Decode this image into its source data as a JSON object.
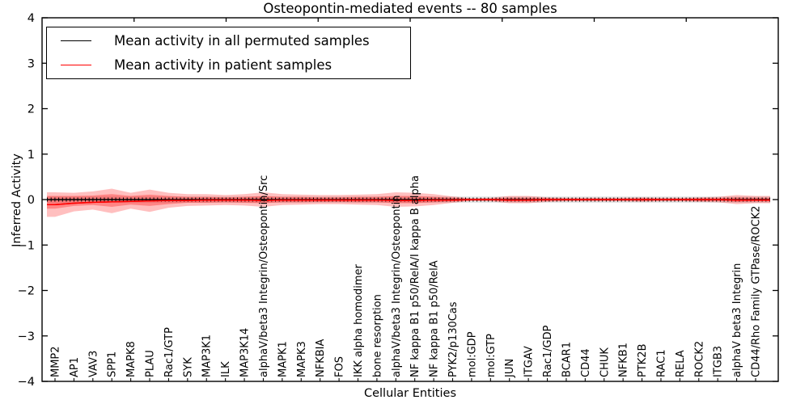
{
  "figure": {
    "title": "Osteopontin-mediated events -- 80 samples",
    "xlabel": "Cellular Entities",
    "ylabel": "Inferred Activity"
  },
  "legend": {
    "items": [
      {
        "label": "Mean activity in all permuted samples",
        "color": "#000000"
      },
      {
        "label": "Mean activity in patient samples",
        "color": "#ff0000"
      }
    ]
  },
  "chart_data": {
    "type": "line",
    "title": "Osteopontin-mediated events -- 80 samples",
    "xlabel": "Cellular Entities",
    "ylabel": "Inferred Activity",
    "ylim": [
      -4,
      4
    ],
    "yticks": [
      -4,
      -3,
      -2,
      -1,
      0,
      1,
      2,
      3,
      4
    ],
    "yticklabels": [
      "−4",
      "−3",
      "−2",
      "−1",
      "0",
      "1",
      "2",
      "3",
      "4"
    ],
    "grid": false,
    "legend_position": "upper left",
    "categories": [
      "MMP2",
      "AP1",
      "VAV3",
      "SPP1",
      "MAPK8",
      "PLAU",
      "Rac1/GTP",
      "SYK",
      "MAP3K1",
      "ILK",
      "MAP3K14",
      "alphaV/beta3 Integrin/Osteopontin/Src",
      "MAPK1",
      "MAPK3",
      "NFKBIA",
      "FOS",
      "IKK alpha homodimer",
      "bone resorption",
      "alphaV/beta3 Integrin/Osteopontin",
      "NF kappa B1 p50/RelA/I kappa B alpha",
      "NF kappa B1 p50/RelA",
      "PYK2/p130Cas",
      "mol:GDP",
      "mol:GTP",
      "JUN",
      "ITGAV",
      "Rac1/GDP",
      "BCAR1",
      "CD44",
      "CHUK",
      "NFKB1",
      "PTK2B",
      "RAC1",
      "RELA",
      "ROCK2",
      "ITGB3",
      "alphaV beta3 Integrin",
      "CD44/Rho Family GTPase/ROCK2"
    ],
    "series": [
      {
        "name": "Mean activity in all permuted samples",
        "color": "#000000",
        "marker": "tick",
        "values": [
          0,
          0,
          0,
          0,
          0,
          0,
          0,
          0,
          0,
          0,
          0,
          0,
          0,
          0,
          0,
          0,
          0,
          0,
          0,
          0,
          0,
          0,
          0,
          0,
          0,
          0,
          0,
          0,
          0,
          0,
          0,
          0,
          0,
          0,
          0,
          0,
          0,
          0
        ]
      },
      {
        "name": "Mean activity in patient samples",
        "color": "#ff0000",
        "marker": "none",
        "values": [
          -0.11,
          -0.08,
          -0.06,
          -0.05,
          -0.04,
          -0.03,
          -0.02,
          -0.02,
          -0.01,
          -0.01,
          -0.01,
          -0.02,
          -0.01,
          -0.01,
          -0.01,
          -0.01,
          -0.01,
          -0.01,
          -0.02,
          -0.02,
          -0.01,
          -0.01,
          0,
          0,
          -0.01,
          -0.01,
          0,
          0,
          0,
          0,
          0,
          0,
          0,
          0,
          0,
          0,
          -0.01,
          -0.01
        ]
      }
    ],
    "bands": [
      {
        "name": "permuted-samples-range",
        "color": "#000000",
        "opacity": 0.1,
        "upper": [
          0.07,
          0.07,
          0.07,
          0.07,
          0.07,
          0.07,
          0.07,
          0.07,
          0.07,
          0.07,
          0.07,
          0.07,
          0.07,
          0.07,
          0.07,
          0.07,
          0.07,
          0.07,
          0.07,
          0.07,
          0.07,
          0.07,
          0.07,
          0.07,
          0.07,
          0.07,
          0.07,
          0.07,
          0.07,
          0.07,
          0.07,
          0.07,
          0.07,
          0.07,
          0.07,
          0.07,
          0.07,
          0.07
        ],
        "lower": [
          -0.07,
          -0.07,
          -0.07,
          -0.07,
          -0.07,
          -0.07,
          -0.07,
          -0.07,
          -0.07,
          -0.07,
          -0.07,
          -0.07,
          -0.07,
          -0.07,
          -0.07,
          -0.07,
          -0.07,
          -0.07,
          -0.07,
          -0.07,
          -0.07,
          -0.07,
          -0.07,
          -0.07,
          -0.07,
          -0.07,
          -0.07,
          -0.07,
          -0.07,
          -0.07,
          -0.07,
          -0.07,
          -0.07,
          -0.07,
          -0.07,
          -0.07,
          -0.07,
          -0.07
        ]
      },
      {
        "name": "patient-samples-outer-range",
        "color": "#ff0000",
        "opacity": 0.25,
        "upper": [
          0.16,
          0.15,
          0.18,
          0.24,
          0.15,
          0.22,
          0.15,
          0.12,
          0.12,
          0.1,
          0.12,
          0.16,
          0.12,
          0.11,
          0.1,
          0.1,
          0.11,
          0.12,
          0.16,
          0.15,
          0.12,
          0.07,
          0.03,
          0.04,
          0.08,
          0.08,
          0.05,
          0.04,
          0.04,
          0.04,
          0.04,
          0.05,
          0.04,
          0.04,
          0.05,
          0.06,
          0.1,
          0.08
        ],
        "lower": [
          -0.38,
          -0.26,
          -0.22,
          -0.3,
          -0.2,
          -0.27,
          -0.18,
          -0.14,
          -0.13,
          -0.12,
          -0.13,
          -0.16,
          -0.12,
          -0.11,
          -0.1,
          -0.1,
          -0.11,
          -0.12,
          -0.16,
          -0.15,
          -0.12,
          -0.07,
          -0.03,
          -0.04,
          -0.08,
          -0.08,
          -0.05,
          -0.04,
          -0.04,
          -0.04,
          -0.04,
          -0.05,
          -0.04,
          -0.04,
          -0.05,
          -0.06,
          -0.1,
          -0.08
        ]
      },
      {
        "name": "patient-samples-inner-range",
        "color": "#ff0000",
        "opacity": 0.3,
        "upper": [
          0.08,
          0.08,
          0.09,
          0.12,
          0.08,
          0.11,
          0.08,
          0.06,
          0.06,
          0.05,
          0.06,
          0.08,
          0.06,
          0.06,
          0.05,
          0.05,
          0.06,
          0.06,
          0.08,
          0.08,
          0.06,
          0.04,
          0.02,
          0.02,
          0.04,
          0.04,
          0.03,
          0.02,
          0.02,
          0.02,
          0.02,
          0.03,
          0.02,
          0.02,
          0.03,
          0.03,
          0.05,
          0.04
        ],
        "lower": [
          -0.2,
          -0.14,
          -0.12,
          -0.16,
          -0.11,
          -0.14,
          -0.1,
          -0.07,
          -0.07,
          -0.06,
          -0.07,
          -0.08,
          -0.06,
          -0.06,
          -0.05,
          -0.05,
          -0.06,
          -0.06,
          -0.08,
          -0.08,
          -0.06,
          -0.04,
          -0.02,
          -0.02,
          -0.04,
          -0.04,
          -0.03,
          -0.02,
          -0.02,
          -0.02,
          -0.02,
          -0.03,
          -0.02,
          -0.02,
          -0.03,
          -0.03,
          -0.05,
          -0.04
        ]
      }
    ]
  }
}
